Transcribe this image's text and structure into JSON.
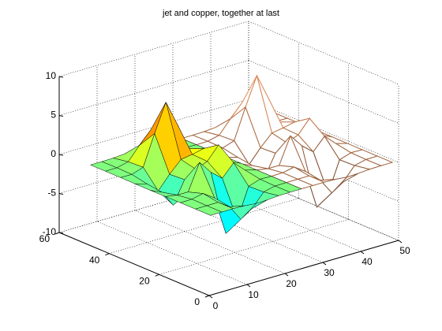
{
  "chart_data": {
    "type": "surface",
    "title": "jet and copper, together at last",
    "xlim": [
      0,
      50
    ],
    "ylim": [
      0,
      60
    ],
    "zlim": [
      -10,
      10
    ],
    "xticks": [
      0,
      10,
      20,
      30,
      40,
      50
    ],
    "yticks": [
      0,
      20,
      40,
      60
    ],
    "zticks": [
      -10,
      -5,
      0,
      5,
      10
    ],
    "grid": true,
    "series": [
      {
        "style": "surf",
        "colormap": "jet",
        "x": [
          1,
          4,
          7,
          10,
          13,
          16,
          19,
          22,
          25
        ],
        "y": [
          1,
          7,
          13,
          19,
          25,
          31,
          37,
          43,
          49
        ],
        "z": [
          [
            0,
            0,
            0.01,
            -0.04,
            -0.19,
            -0.14,
            -0.03,
            0,
            0
          ],
          [
            0,
            0.01,
            0.01,
            -0.98,
            -3.01,
            -2.04,
            -0.36,
            -0.02,
            0
          ],
          [
            0,
            0.03,
            0.33,
            -0.65,
            -5.64,
            -4.3,
            -0.44,
            0.05,
            0
          ],
          [
            -0.01,
            -0.25,
            -0.28,
            3.09,
            1.4,
            0.21,
            1.77,
            0.41,
            0.01
          ],
          [
            -0.03,
            -0.69,
            -2.77,
            0.07,
            0.98,
            1.57,
            3.26,
            0.7,
            0.03
          ],
          [
            -0.02,
            -0.42,
            -1.76,
            -0.05,
            1.42,
            1.65,
            1.98,
            0.4,
            0.02
          ],
          [
            0,
            -0.03,
            0.47,
            4.36,
            7.96,
            4.7,
            1.18,
            0.12,
            0
          ],
          [
            0,
            0.02,
            0.36,
            2.06,
            3.64,
            2.08,
            0.4,
            0.03,
            0
          ],
          [
            0,
            0,
            0.03,
            0.14,
            0.24,
            0.14,
            0.03,
            0,
            0
          ]
        ]
      },
      {
        "style": "mesh",
        "colormap": "copper",
        "x": [
          25,
          28,
          31,
          34,
          37,
          40,
          43,
          46,
          49
        ],
        "y": [
          1,
          7,
          13,
          19,
          25,
          31,
          37,
          43,
          49
        ],
        "z": [
          [
            0,
            0,
            0.01,
            -0.04,
            -0.19,
            -0.14,
            -0.03,
            0,
            0
          ],
          [
            0,
            0.01,
            0.01,
            -0.98,
            -3.01,
            -2.04,
            -0.36,
            -0.02,
            0
          ],
          [
            0,
            0.03,
            0.33,
            -0.65,
            -5.64,
            -4.3,
            -0.44,
            0.05,
            0
          ],
          [
            -0.01,
            -0.25,
            -0.28,
            3.09,
            1.4,
            0.21,
            1.77,
            0.41,
            0.01
          ],
          [
            -0.03,
            -0.69,
            -2.77,
            0.07,
            0.98,
            1.57,
            3.26,
            0.7,
            0.03
          ],
          [
            -0.02,
            -0.42,
            -1.76,
            -0.05,
            1.42,
            1.65,
            1.98,
            0.4,
            0.02
          ],
          [
            0,
            -0.03,
            0.47,
            4.36,
            7.96,
            4.7,
            1.18,
            0.12,
            0
          ],
          [
            0,
            0.02,
            0.36,
            2.06,
            3.64,
            2.08,
            0.4,
            0.03,
            0
          ],
          [
            0,
            0,
            0.03,
            0.14,
            0.24,
            0.14,
            0.03,
            0,
            0
          ]
        ]
      }
    ]
  }
}
